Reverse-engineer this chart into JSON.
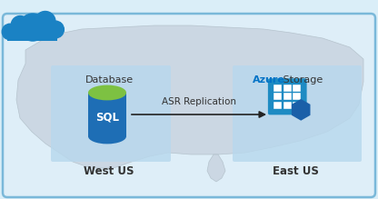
{
  "bg_outer": "#daeef8",
  "bg_border": "#7ab8d9",
  "bg_panel": "#deeef8",
  "bg_map": "#c8d4e0",
  "box_left_bg": "#b8d8ed",
  "box_right_bg": "#b8d8ed",
  "cloud_color": "#1a82c4",
  "sql_body_color": "#1e6eb5",
  "sql_top_color": "#7dc142",
  "sql_text_color": "#ffffff",
  "arrow_color": "#222222",
  "arrow_label": "ASR Replication",
  "arrow_label_color": "#333333",
  "label_left_top": "Database",
  "label_left_bottom": "West US",
  "label_right_top_blue": "Azure",
  "label_right_top_rest": " Storage",
  "label_right_bottom": "East US",
  "azure_color": "#0072c6",
  "storage_grid_color": "#ffffff",
  "storage_hex_color": "#1a5fa8",
  "storage_body_color": "#1e8bc3",
  "figsize": [
    4.16,
    2.19
  ],
  "dpi": 100
}
